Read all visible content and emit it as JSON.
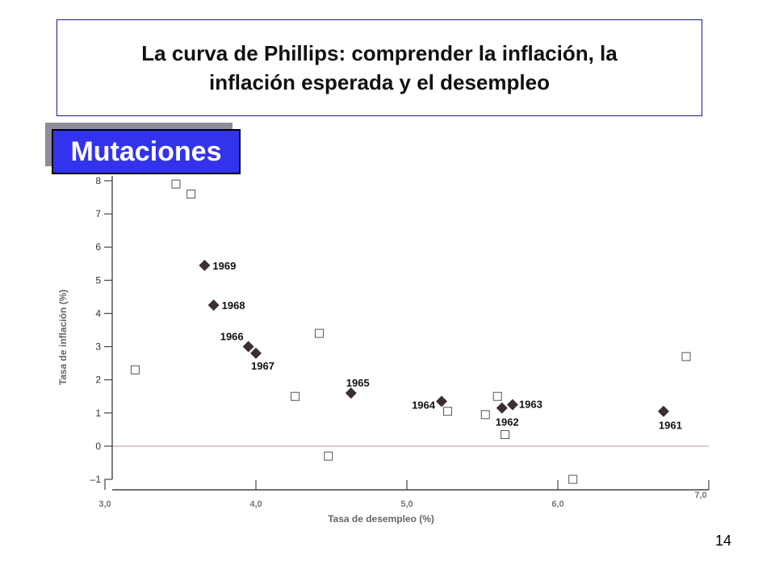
{
  "slide": {
    "title_line1": "La curva de Phillips: comprender la inflación, la",
    "title_line2": "inflación esperada y el desempleo",
    "badge": "Mutaciones",
    "page_number": "14"
  },
  "colors": {
    "title_border": "#1a1a8c",
    "badge_fill": "#3333ee",
    "badge_shadow": "#8c8c9c",
    "diamond": "#3d2f2f",
    "square_stroke": "#555555",
    "zero_line": "#c8a8a8"
  },
  "chart_data": {
    "type": "scatter",
    "xlabel": "Tasa de desempleo (%)",
    "ylabel": "Tasa de inflación (%)",
    "xlim": [
      3.0,
      7.0
    ],
    "ylim": [
      -1,
      8
    ],
    "xticks": [
      3.0,
      4.0,
      5.0,
      6.0,
      7.0
    ],
    "xtick_labels": [
      "3,0",
      "4,0",
      "5,0",
      "6,0",
      "7,0"
    ],
    "yticks": [
      -1,
      0,
      1,
      2,
      3,
      4,
      5,
      6,
      7,
      8
    ],
    "ytick_labels": [
      "–1",
      "0",
      "1",
      "2",
      "3",
      "4",
      "5",
      "6",
      "7",
      "8"
    ],
    "series": [
      {
        "marker": "diamond",
        "points": [
          {
            "x": 6.7,
            "y": 1.05,
            "label": "1961"
          },
          {
            "x": 5.63,
            "y": 1.15,
            "label": "1962"
          },
          {
            "x": 5.7,
            "y": 1.25,
            "label": "1963"
          },
          {
            "x": 5.23,
            "y": 1.35,
            "label": "1964"
          },
          {
            "x": 4.63,
            "y": 1.6,
            "label": "1965"
          },
          {
            "x": 3.95,
            "y": 3.0,
            "label": "1966"
          },
          {
            "x": 4.0,
            "y": 2.8,
            "label": "1967"
          },
          {
            "x": 3.72,
            "y": 4.25,
            "label": "1968"
          },
          {
            "x": 3.66,
            "y": 5.45,
            "label": "1969"
          }
        ]
      },
      {
        "marker": "square",
        "points": [
          {
            "x": 3.47,
            "y": 7.9
          },
          {
            "x": 3.57,
            "y": 7.6
          },
          {
            "x": 3.2,
            "y": 2.3
          },
          {
            "x": 4.42,
            "y": 3.4
          },
          {
            "x": 4.26,
            "y": 1.5
          },
          {
            "x": 4.48,
            "y": -0.3
          },
          {
            "x": 5.27,
            "y": 1.05
          },
          {
            "x": 5.52,
            "y": 0.95
          },
          {
            "x": 5.6,
            "y": 1.5
          },
          {
            "x": 5.65,
            "y": 0.35
          },
          {
            "x": 6.1,
            "y": -1.0
          },
          {
            "x": 6.85,
            "y": 2.7
          }
        ]
      }
    ]
  }
}
